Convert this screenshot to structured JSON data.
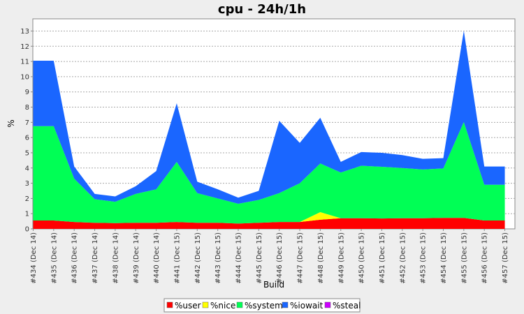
{
  "chart_data": {
    "type": "area",
    "stacked": true,
    "title": "cpu - 24h/1h",
    "xlabel": "Build",
    "ylabel": "%",
    "ylim": [
      0,
      13.8
    ],
    "yticks": [
      0,
      1,
      2,
      3,
      4,
      5,
      6,
      7,
      8,
      9,
      10,
      11,
      12,
      13
    ],
    "grid": true,
    "legend_position": "bottom",
    "categories": [
      "#434 (Dec 14)",
      "#435 (Dec 14)",
      "#436 (Dec 14)",
      "#437 (Dec 14)",
      "#438 (Dec 14)",
      "#439 (Dec 14)",
      "#440 (Dec 14)",
      "#441 (Dec 15)",
      "#442 (Dec 15)",
      "#443 (Dec 15)",
      "#444 (Dec 15)",
      "#445 (Dec 15)",
      "#446 (Dec 15)",
      "#447 (Dec 15)",
      "#448 (Dec 15)",
      "#449 (Dec 15)",
      "#450 (Dec 15)",
      "#451 (Dec 15)",
      "#452 (Dec 15)",
      "#453 (Dec 15)",
      "#454 (Dec 15)",
      "#455 (Dec 15)",
      "#456 (Dec 15)",
      "#457 (Dec 15)"
    ],
    "series": [
      {
        "name": "%user",
        "color": "#ff0000",
        "values": [
          0.55,
          0.55,
          0.45,
          0.4,
          0.38,
          0.4,
          0.4,
          0.45,
          0.4,
          0.4,
          0.35,
          0.4,
          0.45,
          0.45,
          0.6,
          0.7,
          0.7,
          0.68,
          0.7,
          0.7,
          0.72,
          0.72,
          0.55,
          0.55
        ]
      },
      {
        "name": "%nice",
        "color": "#ffff00",
        "values": [
          0,
          0,
          0,
          0,
          0,
          0,
          0,
          0,
          0,
          0,
          0,
          0,
          0,
          0,
          0.5,
          0,
          0,
          0,
          0,
          0,
          0,
          0,
          0,
          0
        ]
      },
      {
        "name": "%system",
        "color": "#00ff55",
        "values": [
          6.2,
          6.2,
          2.85,
          1.55,
          1.4,
          1.9,
          2.2,
          3.95,
          1.95,
          1.6,
          1.3,
          1.5,
          1.9,
          2.55,
          3.2,
          3.0,
          3.45,
          3.4,
          3.3,
          3.2,
          3.25,
          6.3,
          2.35,
          2.35
        ]
      },
      {
        "name": "%iowait",
        "color": "#1a66ff",
        "values": [
          4.3,
          4.3,
          0.8,
          0.35,
          0.35,
          0.5,
          1.2,
          3.85,
          0.75,
          0.6,
          0.4,
          0.6,
          4.75,
          2.65,
          3.0,
          0.7,
          0.9,
          0.92,
          0.85,
          0.7,
          0.68,
          6.0,
          1.2,
          1.2
        ]
      },
      {
        "name": "%steal",
        "color": "#cc00ff",
        "values": [
          0,
          0,
          0,
          0,
          0,
          0,
          0,
          0,
          0,
          0,
          0,
          0,
          0,
          0,
          0,
          0,
          0,
          0,
          0,
          0,
          0,
          0,
          0,
          0
        ]
      }
    ]
  }
}
